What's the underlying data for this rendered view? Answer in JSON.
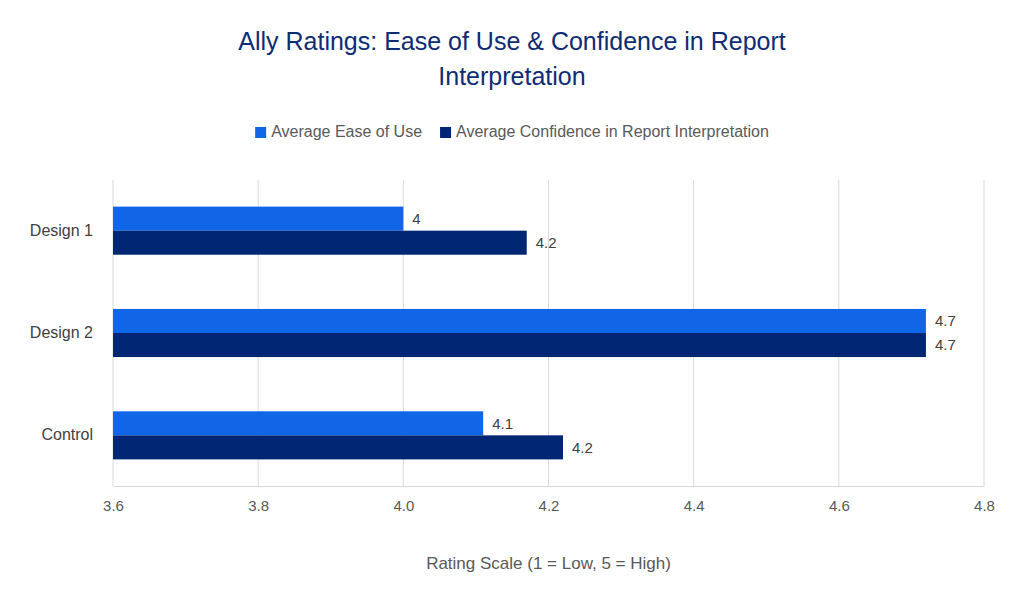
{
  "chart_data": {
    "type": "bar",
    "orientation": "horizontal",
    "title": "Ally Ratings: Ease of Use & Confidence in Report Interpretation",
    "x_label": "Rating Scale (1 = Low, 5 = High)",
    "categories": [
      "Design 1",
      "Design 2",
      "Control"
    ],
    "series": [
      {
        "name": "Average Ease of Use",
        "color": "#1166e8",
        "values": [
          4.0,
          4.72,
          4.11
        ],
        "value_labels": [
          "4",
          "4.7",
          "4.1"
        ]
      },
      {
        "name": "Average Confidence in Report Interpretation",
        "color": "#002674",
        "values": [
          4.17,
          4.72,
          4.22
        ],
        "value_labels": [
          "4.2",
          "4.7",
          "4.2"
        ]
      }
    ],
    "xlim": [
      3.6,
      4.8
    ],
    "xticks": [
      3.6,
      3.8,
      {
        "value": 4,
        "label": "4.0"
      },
      4.2,
      4.4,
      4.6,
      4.8
    ],
    "grid": true,
    "legend": "top",
    "data_labels": true
  }
}
